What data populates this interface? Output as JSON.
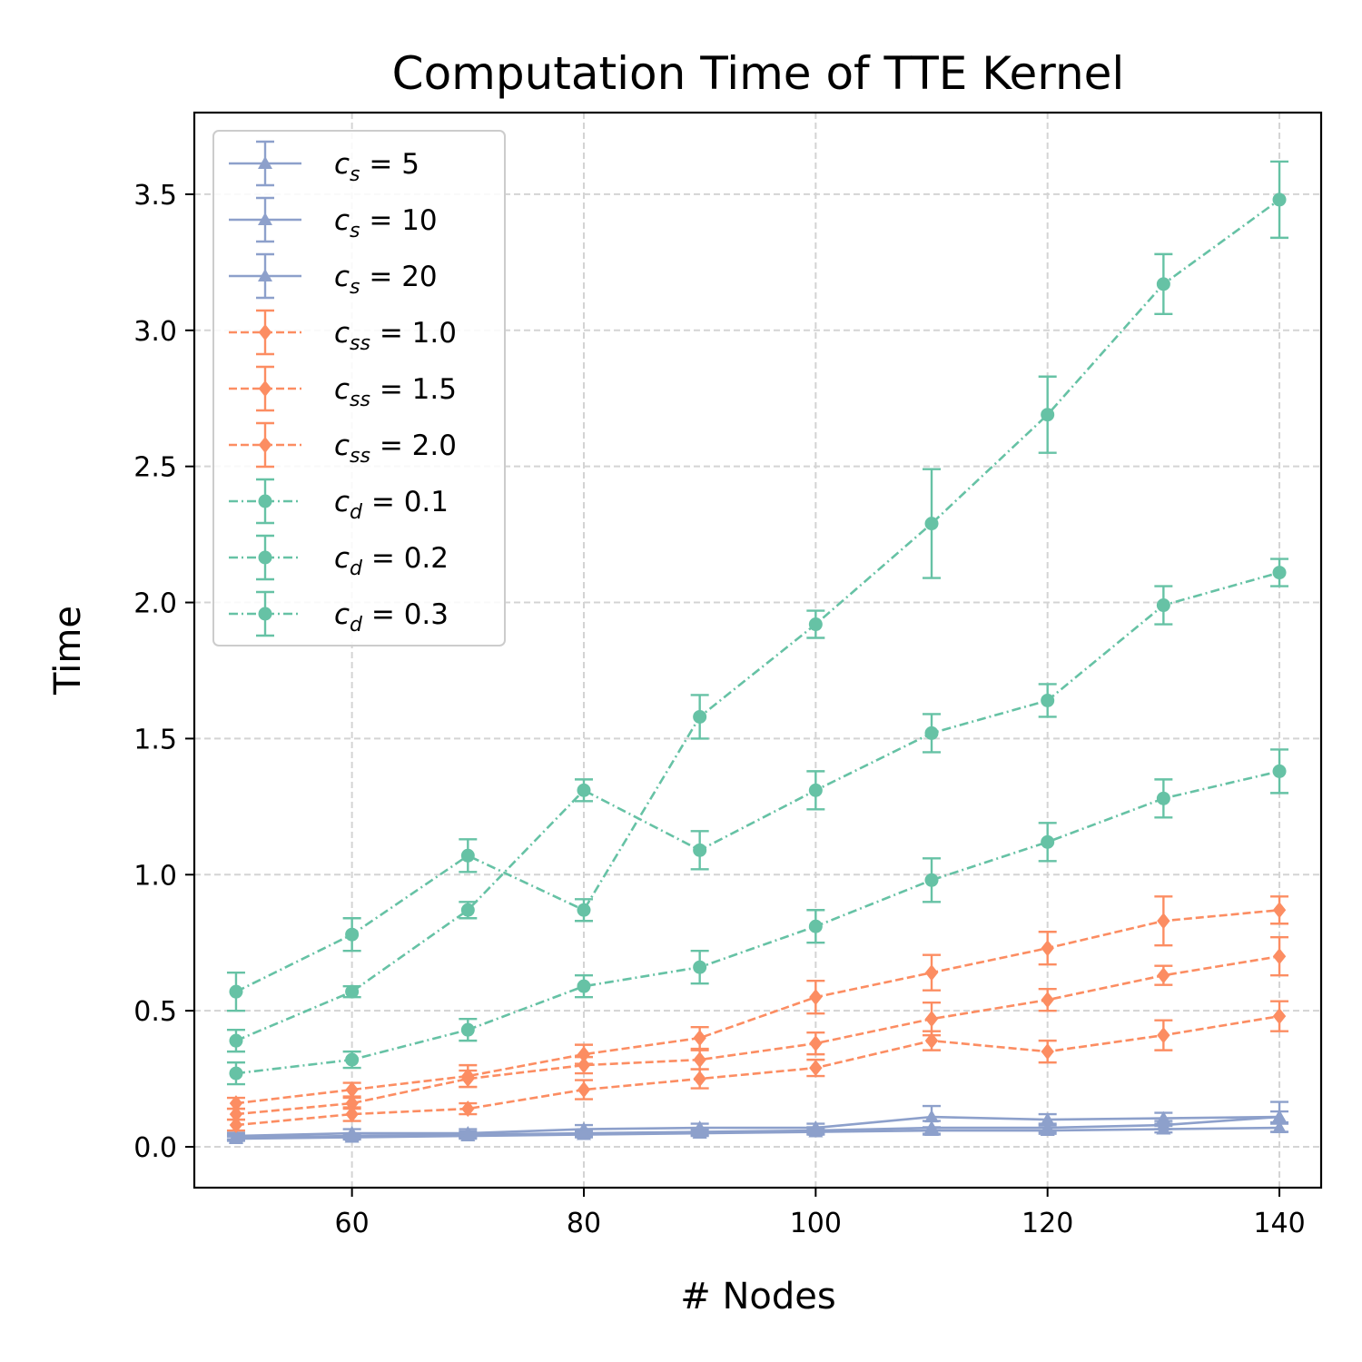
{
  "chart_data": {
    "type": "line",
    "title": "Computation Time of TTE Kernel",
    "xlabel": "# Nodes",
    "ylabel": "Time",
    "xlim": [
      46.4,
      143.6
    ],
    "ylim": [
      -0.15,
      3.8
    ],
    "xticks": [
      60,
      80,
      100,
      120,
      140
    ],
    "yticks": [
      0.0,
      0.5,
      1.0,
      1.5,
      2.0,
      2.5,
      3.0,
      3.5
    ],
    "xtick_labels": [
      "60",
      "80",
      "100",
      "120",
      "140"
    ],
    "ytick_labels": [
      "0.0",
      "0.5",
      "1.0",
      "1.5",
      "2.0",
      "2.5",
      "3.0",
      "3.5"
    ],
    "grid": true,
    "legend_position": "upper-left",
    "x": [
      50,
      60,
      70,
      80,
      90,
      100,
      110,
      120,
      130,
      140
    ],
    "series": [
      {
        "name": "c_s = 5",
        "symbol": "c",
        "sub": "s",
        "value": "5",
        "color": "#8da0cb",
        "linestyle": "solid",
        "marker": "triangle",
        "values": [
          0.04,
          0.05,
          0.05,
          0.065,
          0.07,
          0.07,
          0.11,
          0.1,
          0.105,
          0.11
        ],
        "errors": [
          0.012,
          0.015,
          0.015,
          0.015,
          0.015,
          0.015,
          0.04,
          0.02,
          0.02,
          0.055
        ]
      },
      {
        "name": "c_s = 10",
        "symbol": "c",
        "sub": "s",
        "value": "10",
        "color": "#8da0cb",
        "linestyle": "solid",
        "marker": "triangle",
        "values": [
          0.035,
          0.04,
          0.045,
          0.05,
          0.055,
          0.06,
          0.07,
          0.07,
          0.08,
          0.11
        ],
        "errors": [
          0.01,
          0.01,
          0.012,
          0.012,
          0.012,
          0.012,
          0.025,
          0.015,
          0.015,
          0.02
        ]
      },
      {
        "name": "c_s = 20",
        "symbol": "c",
        "sub": "s",
        "value": "20",
        "color": "#8da0cb",
        "linestyle": "solid",
        "marker": "triangle",
        "values": [
          0.03,
          0.035,
          0.04,
          0.045,
          0.05,
          0.055,
          0.06,
          0.06,
          0.065,
          0.07
        ],
        "errors": [
          0.008,
          0.008,
          0.01,
          0.01,
          0.01,
          0.01,
          0.012,
          0.012,
          0.012,
          0.015
        ]
      },
      {
        "name": "c_ss = 1.0",
        "symbol": "c",
        "sub": "ss",
        "value": "1.0",
        "color": "#fc8d62",
        "linestyle": "dashed",
        "marker": "diamond",
        "values": [
          0.16,
          0.21,
          0.26,
          0.34,
          0.4,
          0.55,
          0.64,
          0.73,
          0.83,
          0.87
        ],
        "errors": [
          0.02,
          0.025,
          0.04,
          0.035,
          0.04,
          0.06,
          0.065,
          0.06,
          0.09,
          0.05
        ]
      },
      {
        "name": "c_ss = 1.5",
        "symbol": "c",
        "sub": "ss",
        "value": "1.5",
        "color": "#fc8d62",
        "linestyle": "dashed",
        "marker": "diamond",
        "values": [
          0.12,
          0.16,
          0.25,
          0.3,
          0.32,
          0.38,
          0.47,
          0.54,
          0.63,
          0.7
        ],
        "errors": [
          0.02,
          0.02,
          0.03,
          0.03,
          0.035,
          0.04,
          0.06,
          0.04,
          0.035,
          0.07
        ]
      },
      {
        "name": "c_ss = 2.0",
        "symbol": "c",
        "sub": "ss",
        "value": "2.0",
        "color": "#fc8d62",
        "linestyle": "dashed",
        "marker": "diamond",
        "values": [
          0.08,
          0.12,
          0.14,
          0.21,
          0.25,
          0.29,
          0.39,
          0.35,
          0.41,
          0.48
        ],
        "errors": [
          0.02,
          0.025,
          0.02,
          0.035,
          0.035,
          0.03,
          0.035,
          0.04,
          0.055,
          0.055
        ]
      },
      {
        "name": "c_d = 0.1",
        "symbol": "c",
        "sub": "d",
        "value": "0.1",
        "color": "#66c2a5",
        "linestyle": "dashdot",
        "marker": "circle",
        "values": [
          0.27,
          0.32,
          0.43,
          0.59,
          0.66,
          0.81,
          0.98,
          1.12,
          1.28,
          1.38
        ],
        "errors": [
          0.04,
          0.03,
          0.04,
          0.04,
          0.06,
          0.06,
          0.08,
          0.07,
          0.07,
          0.08
        ]
      },
      {
        "name": "c_d = 0.2",
        "symbol": "c",
        "sub": "d",
        "value": "0.2",
        "color": "#66c2a5",
        "linestyle": "dashdot",
        "marker": "circle",
        "values": [
          0.39,
          0.57,
          0.87,
          1.31,
          1.09,
          1.31,
          1.52,
          1.64,
          1.99,
          2.11
        ],
        "errors": [
          0.04,
          0.02,
          0.03,
          0.04,
          0.07,
          0.07,
          0.07,
          0.06,
          0.07,
          0.05
        ]
      },
      {
        "name": "c_d = 0.3",
        "symbol": "c",
        "sub": "d",
        "value": "0.3",
        "color": "#66c2a5",
        "linestyle": "dashdot",
        "marker": "circle",
        "values": [
          0.57,
          0.78,
          1.07,
          0.87,
          1.58,
          1.92,
          2.29,
          2.69,
          3.17,
          3.48
        ],
        "errors": [
          0.07,
          0.06,
          0.06,
          0.04,
          0.08,
          0.05,
          0.2,
          0.14,
          0.11,
          0.14
        ]
      }
    ]
  }
}
